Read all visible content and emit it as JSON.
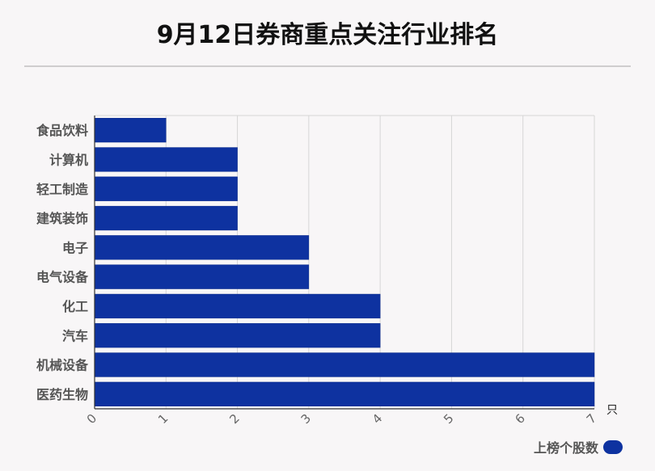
{
  "chart_data": {
    "type": "bar",
    "orientation": "horizontal",
    "title": "9月12日券商重点关注行业排名",
    "categories": [
      "食品饮料",
      "计算机",
      "轻工制造",
      "建筑装饰",
      "电子",
      "电气设备",
      "化工",
      "汽车",
      "机械设备",
      "医药生物"
    ],
    "series": [
      {
        "name": "上榜个股数",
        "values": [
          1,
          2,
          2,
          2,
          3,
          3,
          4,
          4,
          7,
          7
        ]
      }
    ],
    "xlim": [
      0,
      7
    ],
    "xticks": [
      "0",
      "1",
      "2",
      "3",
      "4",
      "5",
      "6",
      "7"
    ],
    "xunit": "只",
    "grid": true,
    "legend": "bottom-right",
    "bar_color": "#0e32a0"
  }
}
